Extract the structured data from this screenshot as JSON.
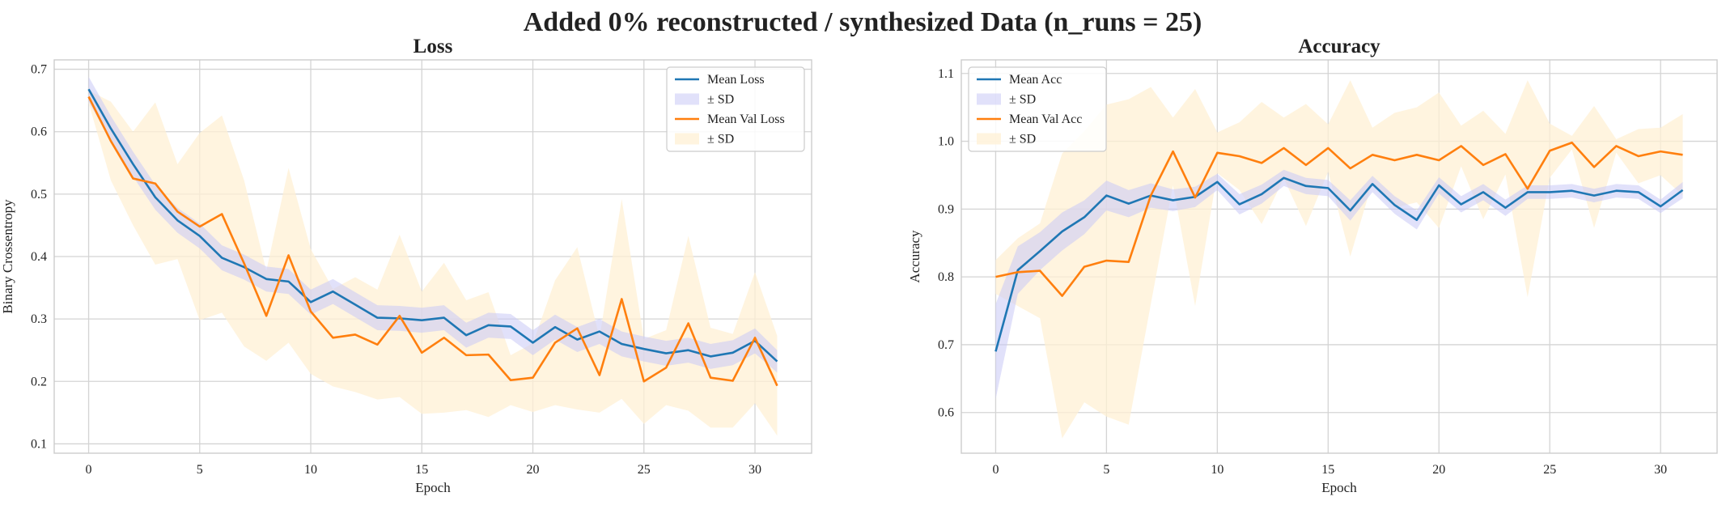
{
  "suptitle": "Added 0% reconstructed / synthesized Data (n_runs = 25)",
  "colors": {
    "train": "#1f77b4",
    "train_band": "#c8c8f5",
    "val": "#ff7f0e",
    "val_band": "#fff0d4",
    "grid": "#d4d4d4",
    "frame": "#cccccc"
  },
  "chart_data": [
    {
      "type": "line",
      "title": "Loss",
      "xlabel": "Epoch",
      "ylabel": "Binary Crossentropy",
      "xlim": [
        -1.55,
        32.55
      ],
      "ylim": [
        0.085,
        0.715
      ],
      "xticks": [
        0,
        5,
        10,
        15,
        20,
        25,
        30
      ],
      "yticks": [
        0.1,
        0.2,
        0.3,
        0.4,
        0.5,
        0.6,
        0.7
      ],
      "grid": true,
      "legend_position": "top-right",
      "x": [
        0,
        1,
        2,
        3,
        4,
        5,
        6,
        7,
        8,
        9,
        10,
        11,
        12,
        13,
        14,
        15,
        16,
        17,
        18,
        19,
        20,
        21,
        22,
        23,
        24,
        25,
        26,
        27,
        28,
        29,
        30,
        31
      ],
      "series": [
        {
          "name": "Mean Loss",
          "band_label": "± SD",
          "values": [
            0.668,
            0.605,
            0.548,
            0.495,
            0.458,
            0.433,
            0.398,
            0.383,
            0.364,
            0.36,
            0.327,
            0.344,
            0.323,
            0.302,
            0.301,
            0.298,
            0.302,
            0.274,
            0.29,
            0.288,
            0.262,
            0.287,
            0.267,
            0.28,
            0.26,
            0.252,
            0.245,
            0.25,
            0.24,
            0.246,
            0.265,
            0.232
          ],
          "sd": [
            0.02,
            0.02,
            0.02,
            0.02,
            0.02,
            0.02,
            0.02,
            0.02,
            0.02,
            0.02,
            0.02,
            0.02,
            0.02,
            0.02,
            0.02,
            0.02,
            0.02,
            0.02,
            0.02,
            0.02,
            0.02,
            0.02,
            0.02,
            0.02,
            0.02,
            0.02,
            0.02,
            0.02,
            0.02,
            0.02,
            0.02,
            0.018
          ]
        },
        {
          "name": "Mean Val Loss",
          "band_label": "± SD",
          "values": [
            0.656,
            0.585,
            0.525,
            0.517,
            0.472,
            0.448,
            0.468,
            0.389,
            0.305,
            0.402,
            0.312,
            0.27,
            0.275,
            0.259,
            0.305,
            0.246,
            0.27,
            0.242,
            0.243,
            0.202,
            0.206,
            0.262,
            0.285,
            0.21,
            0.332,
            0.2,
            0.222,
            0.293,
            0.206,
            0.201,
            0.27,
            0.193
          ],
          "sd": [
            0.01,
            0.063,
            0.075,
            0.13,
            0.076,
            0.15,
            0.158,
            0.133,
            0.072,
            0.14,
            0.1,
            0.078,
            0.092,
            0.088,
            0.13,
            0.098,
            0.12,
            0.088,
            0.1,
            0.04,
            0.055,
            0.1,
            0.13,
            0.06,
            0.16,
            0.068,
            0.06,
            0.14,
            0.08,
            0.075,
            0.105,
            0.08
          ]
        }
      ]
    },
    {
      "type": "line",
      "title": "Accuracy",
      "xlabel": "Epoch",
      "ylabel": "Accuracy",
      "xlim": [
        -1.55,
        32.55
      ],
      "ylim": [
        0.54,
        1.12
      ],
      "xticks": [
        0,
        5,
        10,
        15,
        20,
        25,
        30
      ],
      "yticks": [
        0.6,
        0.7,
        0.8,
        0.9,
        1.0,
        1.1
      ],
      "grid": true,
      "legend_position": "top-left",
      "x": [
        0,
        1,
        2,
        3,
        4,
        5,
        6,
        7,
        8,
        9,
        10,
        11,
        12,
        13,
        14,
        15,
        16,
        17,
        18,
        19,
        20,
        21,
        22,
        23,
        24,
        25,
        26,
        27,
        28,
        29,
        30,
        31
      ],
      "series": [
        {
          "name": "Mean Acc",
          "band_label": "± SD",
          "values": [
            0.69,
            0.81,
            0.838,
            0.867,
            0.888,
            0.92,
            0.908,
            0.92,
            0.913,
            0.918,
            0.94,
            0.907,
            0.922,
            0.946,
            0.934,
            0.931,
            0.898,
            0.937,
            0.906,
            0.884,
            0.935,
            0.907,
            0.925,
            0.902,
            0.925,
            0.925,
            0.927,
            0.92,
            0.927,
            0.925,
            0.904,
            0.928
          ],
          "sd": [
            0.07,
            0.035,
            0.028,
            0.028,
            0.025,
            0.022,
            0.02,
            0.018,
            0.016,
            0.015,
            0.012,
            0.015,
            0.014,
            0.012,
            0.012,
            0.012,
            0.015,
            0.012,
            0.013,
            0.014,
            0.012,
            0.012,
            0.012,
            0.012,
            0.01,
            0.01,
            0.01,
            0.01,
            0.01,
            0.01,
            0.01,
            0.012
          ]
        },
        {
          "name": "Mean Val Acc",
          "band_label": "± SD",
          "values": [
            0.8,
            0.807,
            0.809,
            0.772,
            0.815,
            0.824,
            0.822,
            0.92,
            0.985,
            0.917,
            0.983,
            0.978,
            0.968,
            0.99,
            0.965,
            0.99,
            0.96,
            0.98,
            0.972,
            0.98,
            0.972,
            0.993,
            0.965,
            0.981,
            0.93,
            0.986,
            0.998,
            0.962,
            0.993,
            0.978,
            0.985,
            0.98
          ],
          "sd": [
            0.025,
            0.05,
            0.07,
            0.21,
            0.2,
            0.23,
            0.24,
            0.16,
            0.05,
            0.16,
            0.03,
            0.05,
            0.09,
            0.045,
            0.09,
            0.035,
            0.13,
            0.04,
            0.07,
            0.07,
            0.1,
            0.03,
            0.08,
            0.03,
            0.16,
            0.04,
            0.01,
            0.09,
            0.01,
            0.04,
            0.035,
            0.06
          ]
        }
      ]
    }
  ]
}
